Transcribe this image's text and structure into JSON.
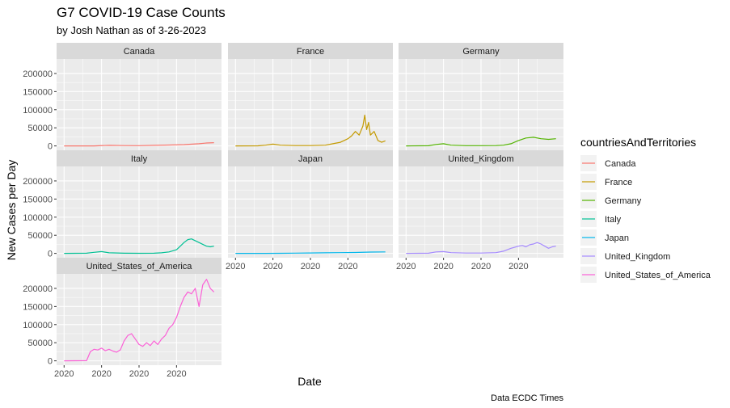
{
  "chart_data": {
    "type": "line",
    "title": "G7 COVID-19 Case Counts",
    "subtitle": "by Josh Nathan as of 3-26-2023",
    "xlabel": "Date",
    "ylabel": "New Cases per Day",
    "caption": "Data ECDC Times",
    "legend_title": "countriesAndTerritories",
    "legend_position": "right",
    "facets": [
      "Canada",
      "France",
      "Germany",
      "Italy",
      "Japan",
      "United_Kingdom",
      "United_States_of_America"
    ],
    "y_ticks": [
      0,
      50000,
      100000,
      150000,
      200000
    ],
    "y_tick_labels": [
      "0",
      "50000",
      "100000",
      "150000",
      "200000"
    ],
    "ylim": [
      -12000,
      240000
    ],
    "x_tick_labels": [
      "2020",
      "2020",
      "2020",
      "2020"
    ],
    "x_units": "weeks since the first reported case (approximate)",
    "xlim": [
      -2,
      42
    ],
    "grid": true,
    "series": [
      {
        "name": "Canada",
        "color": "#F8766D",
        "x": [
          0,
          8,
          12,
          16,
          20,
          24,
          28,
          32,
          36,
          38,
          40
        ],
        "y": [
          0,
          0,
          1500,
          1000,
          800,
          1500,
          2500,
          3500,
          6000,
          8000,
          9000
        ]
      },
      {
        "name": "France",
        "color": "#C49A00",
        "x": [
          0,
          6,
          8,
          10,
          12,
          16,
          20,
          24,
          26,
          28,
          30,
          31,
          32,
          33,
          34,
          34.5,
          35,
          35.5,
          36,
          37,
          38,
          39,
          40
        ],
        "y": [
          0,
          200,
          2000,
          5000,
          2000,
          1000,
          1000,
          2000,
          6000,
          10000,
          20000,
          28000,
          40000,
          30000,
          55000,
          85000,
          45000,
          65000,
          30000,
          40000,
          15000,
          10000,
          14000
        ]
      },
      {
        "name": "Germany",
        "color": "#53B400",
        "x": [
          0,
          6,
          8,
          10,
          12,
          16,
          20,
          24,
          26,
          28,
          30,
          32,
          34,
          36,
          38,
          40
        ],
        "y": [
          0,
          500,
          4000,
          6000,
          2000,
          800,
          800,
          1000,
          2000,
          6000,
          15000,
          22000,
          24000,
          20000,
          18000,
          20000
        ]
      },
      {
        "name": "Italy",
        "color": "#00C094",
        "x": [
          0,
          6,
          8,
          10,
          12,
          16,
          20,
          24,
          26,
          28,
          30,
          31,
          32,
          33,
          34,
          35,
          36,
          37,
          38,
          39,
          40
        ],
        "y": [
          0,
          500,
          3000,
          5000,
          1500,
          400,
          300,
          500,
          1500,
          4000,
          10000,
          20000,
          30000,
          38000,
          40000,
          35000,
          30000,
          25000,
          20000,
          18000,
          20000
        ]
      },
      {
        "name": "Japan",
        "color": "#00B6EB",
        "x": [
          0,
          8,
          12,
          16,
          20,
          24,
          28,
          32,
          36,
          40
        ],
        "y": [
          0,
          50,
          200,
          800,
          1200,
          1500,
          2000,
          2500,
          3500,
          4000
        ]
      },
      {
        "name": "United_Kingdom",
        "color": "#A58AFF",
        "x": [
          0,
          6,
          8,
          10,
          12,
          16,
          20,
          24,
          26,
          28,
          30,
          31,
          32,
          33,
          34,
          35,
          36,
          37,
          38,
          39,
          40
        ],
        "y": [
          0,
          500,
          4000,
          5000,
          2000,
          1000,
          1000,
          2000,
          6000,
          14000,
          20000,
          22000,
          18000,
          24000,
          26000,
          30000,
          26000,
          20000,
          14000,
          18000,
          20000
        ]
      },
      {
        "name": "United_States_of_America",
        "color": "#FB61D7",
        "x": [
          0,
          6,
          7,
          8,
          9,
          10,
          11,
          12,
          13,
          14,
          15,
          16,
          17,
          18,
          19,
          20,
          21,
          22,
          23,
          24,
          25,
          26,
          27,
          28,
          29,
          30,
          31,
          32,
          33,
          34,
          35,
          36,
          37,
          38,
          39,
          40
        ],
        "y": [
          0,
          500,
          25000,
          32000,
          30000,
          35000,
          28000,
          32000,
          27000,
          24000,
          30000,
          55000,
          70000,
          75000,
          60000,
          45000,
          40000,
          50000,
          42000,
          55000,
          45000,
          60000,
          70000,
          90000,
          100000,
          120000,
          150000,
          175000,
          190000,
          185000,
          200000,
          150000,
          210000,
          225000,
          200000,
          190000
        ]
      }
    ]
  }
}
